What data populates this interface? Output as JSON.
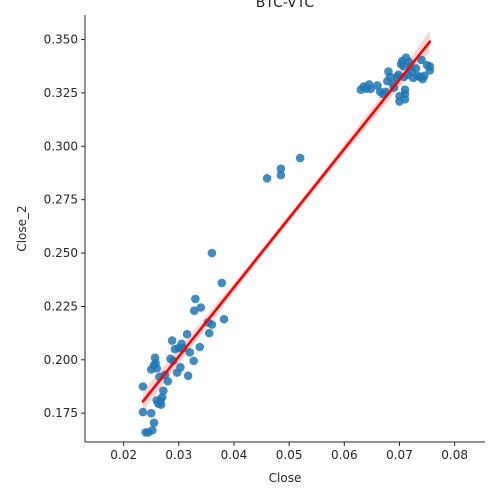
{
  "chart_data": {
    "type": "scatter",
    "title": "BTC-VTC",
    "xlabel": "Close",
    "ylabel": "Close_2",
    "xlim": [
      0.013,
      0.0855
    ],
    "ylim": [
      0.1615,
      0.3615
    ],
    "xticks": [
      0.02,
      0.03,
      0.04,
      0.05,
      0.06,
      0.07,
      0.08
    ],
    "xtick_labels": [
      "0.02",
      "0.03",
      "0.04",
      "0.05",
      "0.06",
      "0.07",
      "0.08"
    ],
    "yticks": [
      0.175,
      0.2,
      0.225,
      0.25,
      0.275,
      0.3,
      0.325,
      0.35
    ],
    "ytick_labels": [
      "0.175",
      "0.200",
      "0.225",
      "0.250",
      "0.275",
      "0.300",
      "0.325",
      "0.350"
    ],
    "grid": false,
    "point_color": "#1f77b4",
    "regression_color": "#ff0000",
    "confidence_band_color": "#f4a6a6",
    "regression_line": {
      "x": [
        0.0235,
        0.0755
      ],
      "y": [
        0.1805,
        0.349
      ]
    },
    "points": [
      {
        "x": 0.0235,
        "y": 0.1875
      },
      {
        "x": 0.0235,
        "y": 0.1755
      },
      {
        "x": 0.024,
        "y": 0.166
      },
      {
        "x": 0.0245,
        "y": 0.166
      },
      {
        "x": 0.025,
        "y": 0.175
      },
      {
        "x": 0.025,
        "y": 0.1955
      },
      {
        "x": 0.0252,
        "y": 0.167
      },
      {
        "x": 0.0255,
        "y": 0.1705
      },
      {
        "x": 0.0255,
        "y": 0.1975
      },
      {
        "x": 0.0257,
        "y": 0.201
      },
      {
        "x": 0.0258,
        "y": 0.1985
      },
      {
        "x": 0.026,
        "y": 0.196
      },
      {
        "x": 0.026,
        "y": 0.181
      },
      {
        "x": 0.0263,
        "y": 0.1795
      },
      {
        "x": 0.0265,
        "y": 0.192
      },
      {
        "x": 0.0267,
        "y": 0.181
      },
      {
        "x": 0.0268,
        "y": 0.179
      },
      {
        "x": 0.027,
        "y": 0.1825
      },
      {
        "x": 0.0272,
        "y": 0.1855
      },
      {
        "x": 0.0275,
        "y": 0.193
      },
      {
        "x": 0.028,
        "y": 0.19
      },
      {
        "x": 0.0285,
        "y": 0.2005
      },
      {
        "x": 0.0288,
        "y": 0.209
      },
      {
        "x": 0.029,
        "y": 0.1995
      },
      {
        "x": 0.0293,
        "y": 0.205
      },
      {
        "x": 0.0297,
        "y": 0.194
      },
      {
        "x": 0.03,
        "y": 0.2055
      },
      {
        "x": 0.0303,
        "y": 0.1965
      },
      {
        "x": 0.0305,
        "y": 0.2075
      },
      {
        "x": 0.0308,
        "y": 0.2055
      },
      {
        "x": 0.0315,
        "y": 0.212
      },
      {
        "x": 0.0317,
        "y": 0.1925
      },
      {
        "x": 0.032,
        "y": 0.2035
      },
      {
        "x": 0.0327,
        "y": 0.1995
      },
      {
        "x": 0.0328,
        "y": 0.223
      },
      {
        "x": 0.033,
        "y": 0.2285
      },
      {
        "x": 0.0338,
        "y": 0.206
      },
      {
        "x": 0.034,
        "y": 0.2245
      },
      {
        "x": 0.0353,
        "y": 0.2175
      },
      {
        "x": 0.0355,
        "y": 0.2125
      },
      {
        "x": 0.036,
        "y": 0.25
      },
      {
        "x": 0.036,
        "y": 0.2165
      },
      {
        "x": 0.0378,
        "y": 0.236
      },
      {
        "x": 0.0382,
        "y": 0.219
      },
      {
        "x": 0.046,
        "y": 0.285
      },
      {
        "x": 0.0485,
        "y": 0.2895
      },
      {
        "x": 0.0485,
        "y": 0.2865
      },
      {
        "x": 0.052,
        "y": 0.2945
      },
      {
        "x": 0.063,
        "y": 0.3265
      },
      {
        "x": 0.0635,
        "y": 0.328
      },
      {
        "x": 0.064,
        "y": 0.327
      },
      {
        "x": 0.0645,
        "y": 0.329
      },
      {
        "x": 0.0648,
        "y": 0.327
      },
      {
        "x": 0.066,
        "y": 0.3285
      },
      {
        "x": 0.0665,
        "y": 0.3255
      },
      {
        "x": 0.067,
        "y": 0.3245
      },
      {
        "x": 0.0675,
        "y": 0.3255
      },
      {
        "x": 0.0678,
        "y": 0.3305
      },
      {
        "x": 0.068,
        "y": 0.335
      },
      {
        "x": 0.0683,
        "y": 0.3325
      },
      {
        "x": 0.0688,
        "y": 0.3295
      },
      {
        "x": 0.069,
        "y": 0.3275
      },
      {
        "x": 0.0695,
        "y": 0.3325
      },
      {
        "x": 0.0698,
        "y": 0.3335
      },
      {
        "x": 0.07,
        "y": 0.3235
      },
      {
        "x": 0.07,
        "y": 0.321
      },
      {
        "x": 0.0703,
        "y": 0.3385
      },
      {
        "x": 0.0705,
        "y": 0.34
      },
      {
        "x": 0.0707,
        "y": 0.3375
      },
      {
        "x": 0.0708,
        "y": 0.3325
      },
      {
        "x": 0.071,
        "y": 0.3245
      },
      {
        "x": 0.071,
        "y": 0.322
      },
      {
        "x": 0.071,
        "y": 0.3265
      },
      {
        "x": 0.0712,
        "y": 0.3415
      },
      {
        "x": 0.0715,
        "y": 0.3335
      },
      {
        "x": 0.0717,
        "y": 0.3395
      },
      {
        "x": 0.072,
        "y": 0.3375
      },
      {
        "x": 0.0722,
        "y": 0.335
      },
      {
        "x": 0.0725,
        "y": 0.332
      },
      {
        "x": 0.073,
        "y": 0.3365
      },
      {
        "x": 0.0733,
        "y": 0.333
      },
      {
        "x": 0.0737,
        "y": 0.3325
      },
      {
        "x": 0.074,
        "y": 0.3405
      },
      {
        "x": 0.0742,
        "y": 0.3315
      },
      {
        "x": 0.0745,
        "y": 0.333
      },
      {
        "x": 0.075,
        "y": 0.338
      },
      {
        "x": 0.0755,
        "y": 0.3375
      },
      {
        "x": 0.0755,
        "y": 0.3355
      }
    ]
  }
}
